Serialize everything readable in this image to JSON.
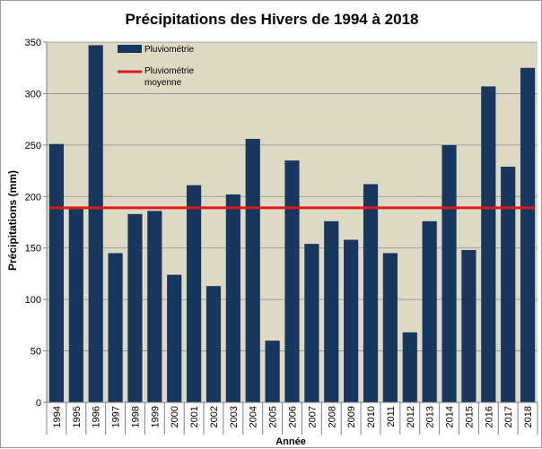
{
  "chart_data": {
    "type": "bar",
    "title": "Précipitations des Hivers de 1994 à 2018",
    "xlabel": "Année",
    "ylabel": "Précipitations (mm)",
    "ylim": [
      0,
      350
    ],
    "yticks": [
      0,
      50,
      100,
      150,
      200,
      250,
      300,
      350
    ],
    "grid": true,
    "legend_position": "top-left",
    "categories": [
      "1994",
      "1995",
      "1996",
      "1997",
      "1998",
      "1999",
      "2000",
      "2001",
      "2002",
      "2003",
      "2004",
      "2005",
      "2006",
      "2007",
      "2008",
      "2009",
      "2010",
      "2011",
      "2012",
      "2013",
      "2014",
      "2015",
      "2016",
      "2017",
      "2018"
    ],
    "series": [
      {
        "name": "Pluviométrie",
        "color": "#17375e",
        "values": [
          251,
          188,
          347,
          145,
          183,
          186,
          124,
          211,
          113,
          202,
          256,
          60,
          235,
          154,
          176,
          158,
          212,
          145,
          68,
          176,
          250,
          148,
          307,
          229,
          325
        ]
      }
    ],
    "reference_line": {
      "name_line1": "Pluviométrie",
      "name_line2": "moyenne",
      "value": 189,
      "color": "#e0191b"
    },
    "plot_background": "#ddd9c3"
  }
}
